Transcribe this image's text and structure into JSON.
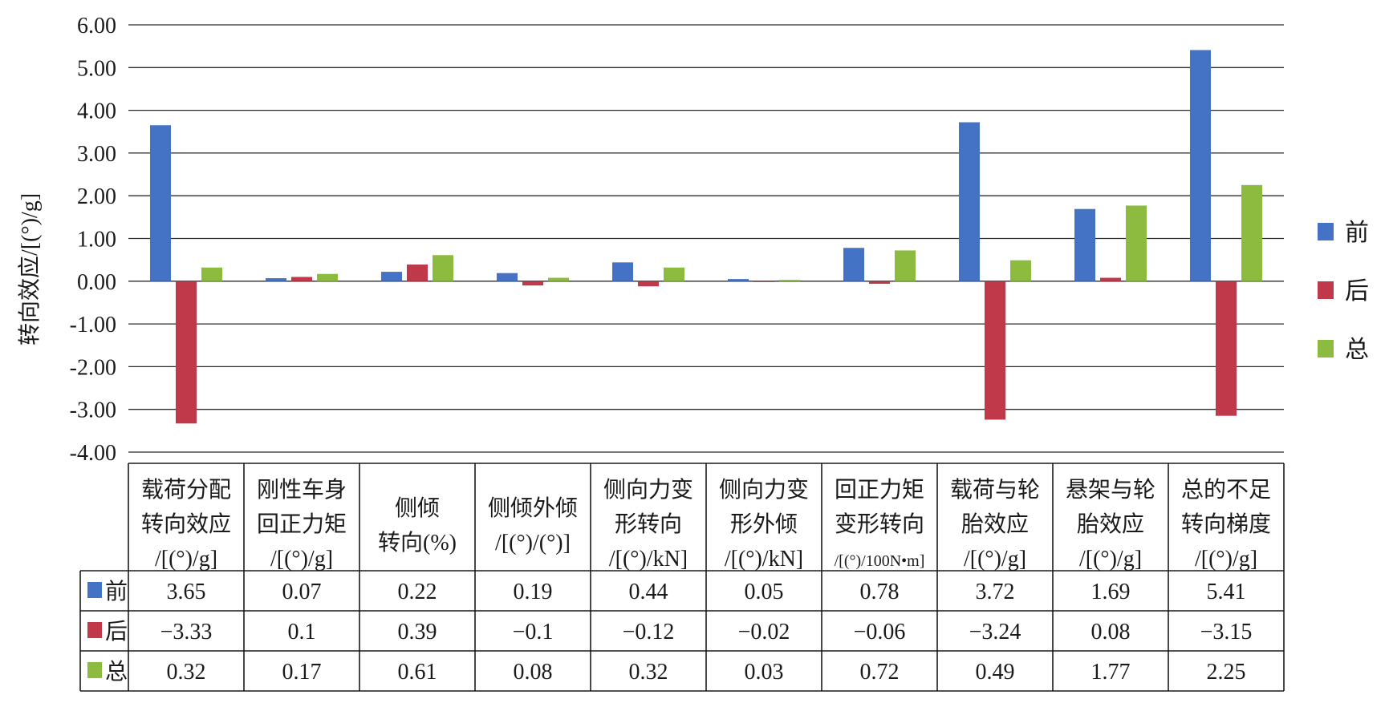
{
  "chart_data": {
    "type": "bar",
    "ylabel": "转向效应/[(°)/g]",
    "ylim": [
      -4,
      6
    ],
    "yticks": [
      "6.00",
      "5.00",
      "4.00",
      "3.00",
      "2.00",
      "1.00",
      "0.00",
      "-1.00",
      "-2.00",
      "-3.00",
      "-4.00"
    ],
    "grid": true,
    "legend_position": "right",
    "categories": [
      [
        "载荷分配",
        "转向效应",
        "/[(°)/g]"
      ],
      [
        "刚性车身",
        "回正力矩",
        "/[(°)/g]"
      ],
      [
        "侧倾",
        "转向(%)"
      ],
      [
        "侧倾外倾",
        "/[(°)/(°)]"
      ],
      [
        "侧向力变",
        "形转向",
        "/[(°)/kN]"
      ],
      [
        "侧向力变",
        "形外倾",
        "/[(°)/kN]"
      ],
      [
        "回正力矩",
        "变形转向",
        "/[(°)/100N•m]"
      ],
      [
        "载荷与轮",
        "胎效应",
        "/[(°)/g]"
      ],
      [
        "悬架与轮",
        "胎效应",
        "/[(°)/g]"
      ],
      [
        "总的不足",
        "转向梯度",
        "/[(°)/g]"
      ]
    ],
    "series": [
      {
        "name": "前",
        "color": "#4472C4",
        "values": [
          3.65,
          0.07,
          0.22,
          0.19,
          0.44,
          0.05,
          0.78,
          3.72,
          1.69,
          5.41
        ],
        "labels": [
          "3.65",
          "0.07",
          "0.22",
          "0.19",
          "0.44",
          "0.05",
          "0.78",
          "3.72",
          "1.69",
          "5.41"
        ]
      },
      {
        "name": "后",
        "color": "#C0394B",
        "values": [
          -3.33,
          0.1,
          0.39,
          -0.1,
          -0.12,
          -0.02,
          -0.06,
          -3.24,
          0.08,
          -3.15
        ],
        "labels": [
          "−3.33",
          "0.1",
          "0.39",
          "−0.1",
          "−0.12",
          "−0.02",
          "−0.06",
          "−3.24",
          "0.08",
          "−3.15"
        ]
      },
      {
        "name": "总",
        "color": "#8DBB3F",
        "values": [
          0.32,
          0.17,
          0.61,
          0.08,
          0.32,
          0.03,
          0.72,
          0.49,
          1.77,
          2.25
        ],
        "labels": [
          "0.32",
          "0.17",
          "0.61",
          "0.08",
          "0.32",
          "0.03",
          "0.72",
          "0.49",
          "1.77",
          "2.25"
        ]
      }
    ]
  }
}
